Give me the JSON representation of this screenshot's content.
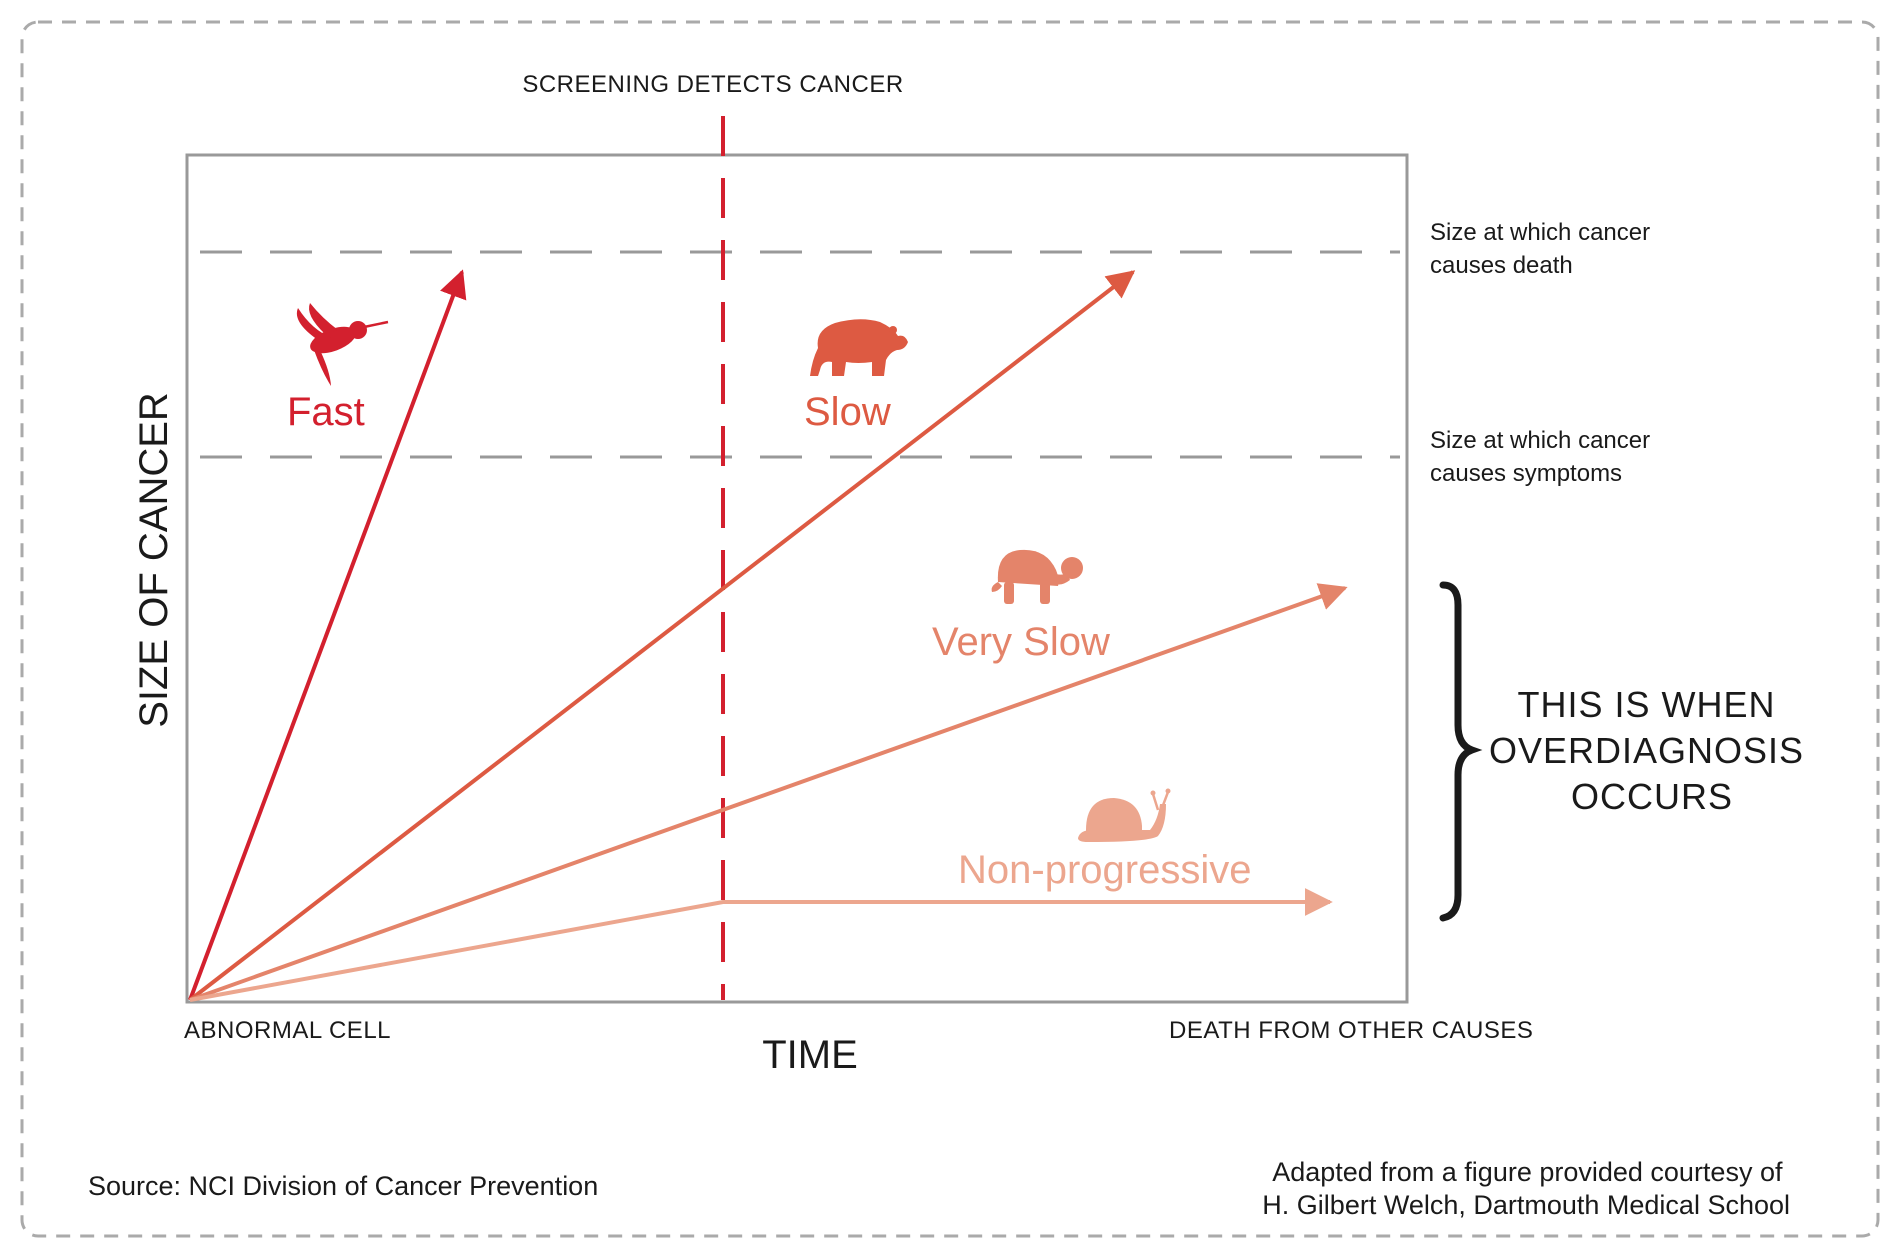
{
  "screening_label": "SCREENING DETECTS CANCER",
  "thresholds": {
    "death": [
      "Size at which cancer",
      "causes death"
    ],
    "symptoms": [
      "Size at which cancer",
      "causes symptoms"
    ]
  },
  "y_axis_label": "SIZE OF CANCER",
  "x_axis_label": "TIME",
  "x_start_label": "ABNORMAL CELL",
  "x_end_label": "DEATH FROM OTHER CAUSES",
  "overdiagnosis": [
    "THIS IS WHEN",
    "OVERDIAGNOSIS",
    "OCCURS"
  ],
  "source": "Source: NCI Division of Cancer Prevention",
  "credit": [
    "Adapted from a figure provided courtesy of",
    "H. Gilbert Welch, Dartmouth Medical School"
  ],
  "colors": {
    "fast": "#d3202e",
    "slow": "#dd5a42",
    "very_slow": "#e4846a",
    "non_progressive": "#eca68e",
    "frame": "#999999",
    "dashed_border": "#aaaaaa",
    "screening_line": "#d3202e"
  },
  "icons": {
    "fast": "hummingbird-icon",
    "slow": "bear-icon",
    "very_slow": "tortoise-icon",
    "non_progressive": "snail-icon"
  },
  "speeds": {
    "fast": "Fast",
    "slow": "Slow",
    "very_slow": "Very Slow",
    "non_progressive": "Non-progressive"
  }
}
